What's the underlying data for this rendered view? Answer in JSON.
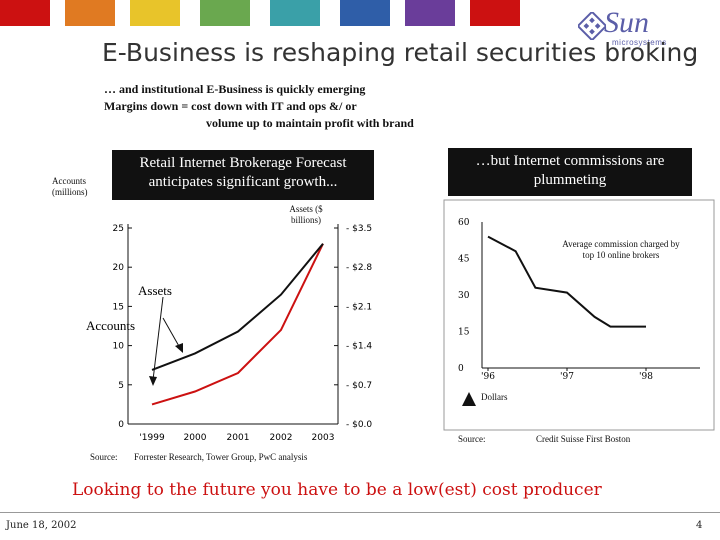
{
  "colors": {
    "bar_red": "#cc1111",
    "bar_orange": "#e07a22",
    "bar_yellow": "#e8c42a",
    "bar_green": "#6aa84f",
    "bar_teal": "#3aa0a8",
    "bar_blue": "#2f5ea8",
    "bar_purple": "#6a3d9a",
    "accent_red": "#cc1111"
  },
  "logo": {
    "name": "Sun",
    "sub": "microsystems",
    "icon": "sun-logo-icon"
  },
  "title": "E-Business is reshaping retail securities broking",
  "subtitle_lines": [
    "… and  institutional E-Business is quickly emerging",
    "Margins down = cost down with IT and ops &/ or",
    "volume up to maintain profit with brand"
  ],
  "chart_data": [
    {
      "type": "line",
      "header": "Retail Internet Brokerage Forecast anticipates significant growth...",
      "left_axis_label": "Accounts (millions)",
      "right_axis_label": "Assets ($ billions)",
      "categories": [
        "1999",
        "2000",
        "2001",
        "2002",
        "2003"
      ],
      "left_ticks": [
        "0",
        "5",
        "10",
        "15",
        "20",
        "25"
      ],
      "right_ticks": [
        "$0.0",
        "$0.7",
        "$1.4",
        "$2.1",
        "$2.8",
        "$3.5"
      ],
      "ylim_left": [
        0,
        25
      ],
      "ylim_right": [
        0,
        3.5
      ],
      "series": [
        {
          "name": "Assets",
          "color": "#cc1111",
          "axis": "right",
          "values": [
            0.35,
            0.58,
            0.91,
            1.68,
            3.22
          ]
        },
        {
          "name": "Accounts",
          "color": "#111111",
          "axis": "left",
          "values": [
            6.9,
            9.0,
            11.8,
            16.5,
            23.0
          ]
        }
      ],
      "annotations": [
        "Assets",
        "Accounts"
      ],
      "source_label": "Source:",
      "source": "Forrester Research, Tower Group, PwC analysis"
    },
    {
      "type": "line",
      "header": "…but Internet commissions are plummeting",
      "y_ticks": [
        "0",
        "15",
        "30",
        "45",
        "60"
      ],
      "ylim": [
        0,
        60
      ],
      "x_ticks": [
        "'96",
        "'97",
        "'98"
      ],
      "ylabel": "Dollars",
      "series": [
        {
          "name": "Average commission charged by top 10 online brokers",
          "color": "#111111",
          "points": [
            [
              1996.0,
              54
            ],
            [
              1996.35,
              48
            ],
            [
              1996.6,
              33
            ],
            [
              1997.0,
              31
            ],
            [
              1997.35,
              21
            ],
            [
              1997.55,
              17
            ],
            [
              1998.0,
              17
            ]
          ]
        }
      ],
      "source_label": "Source:",
      "source": "Credit Suisse First Boston"
    }
  ],
  "footer_message": "Looking to the future you have to be a low(est) cost producer",
  "footer_date": "June 18, 2002",
  "page_number": "4"
}
